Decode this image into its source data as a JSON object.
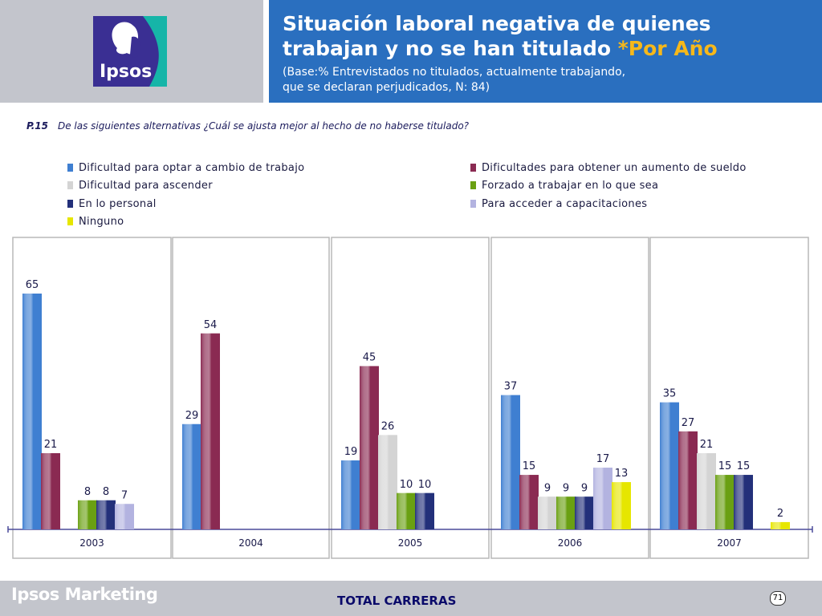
{
  "header": {
    "logo_text": "Ipsos",
    "title_main": "Situación laboral negativa de quienes trabajan y no se han titulado ",
    "title_accent": "*Por Año",
    "subtitle_line1": "(Base:% Entrevistados no titulados, actualmente trabajando,",
    "subtitle_line2": "que se declaran perjudicados, N: 84)"
  },
  "question": {
    "code": "P.15",
    "text": "De las siguientes alternativas ¿Cuál se ajusta mejor al hecho de no haberse titulado?"
  },
  "chart_data": {
    "type": "bar",
    "categories": [
      "2003",
      "2004",
      "2005",
      "2006",
      "2007"
    ],
    "series": [
      {
        "name": "Dificultad para optar a cambio de trabajo",
        "color": "#3f7fd1",
        "values": [
          65,
          29,
          19,
          37,
          35
        ]
      },
      {
        "name": "Dificultades para obtener un aumento de sueldo",
        "color": "#8a2a52",
        "values": [
          21,
          54,
          45,
          15,
          27
        ]
      },
      {
        "name": "Dificultad para ascender",
        "color": "#d4d4d4",
        "values": [
          null,
          null,
          26,
          9,
          21
        ]
      },
      {
        "name": "Forzado a trabajar en lo que sea",
        "color": "#6aa012",
        "values": [
          8,
          null,
          10,
          9,
          15
        ]
      },
      {
        "name": "En lo personal",
        "color": "#23307a",
        "values": [
          8,
          null,
          10,
          9,
          15
        ]
      },
      {
        "name": "Para acceder a capacitaciones",
        "color": "#b3b3e0",
        "values": [
          7,
          null,
          null,
          17,
          null
        ]
      },
      {
        "name": "Ninguno",
        "color": "#e6e600",
        "values": [
          null,
          null,
          null,
          13,
          2
        ]
      }
    ],
    "ylim": [
      0,
      70
    ],
    "xlabel": "",
    "ylabel": ""
  },
  "footer": {
    "brand": "Ipsos Marketing",
    "total": "TOTAL CARRERAS",
    "page": "71"
  }
}
